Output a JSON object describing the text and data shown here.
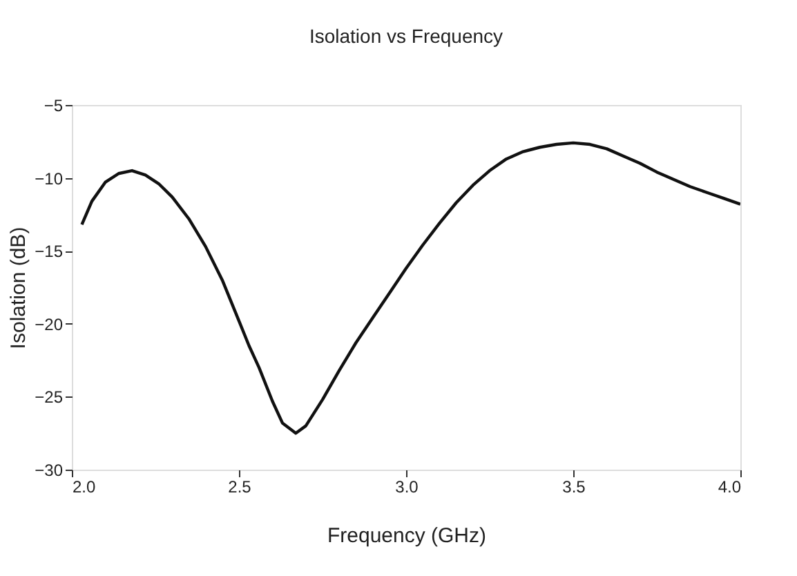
{
  "chart_data": {
    "type": "line",
    "title": "Isolation vs Frequency",
    "xlabel": "Frequency (GHz)",
    "ylabel": "Isolation (dB)",
    "x": [
      2.03,
      2.06,
      2.1,
      2.14,
      2.18,
      2.22,
      2.26,
      2.3,
      2.35,
      2.4,
      2.45,
      2.5,
      2.53,
      2.56,
      2.6,
      2.63,
      2.67,
      2.7,
      2.75,
      2.8,
      2.85,
      2.9,
      2.95,
      3.0,
      3.05,
      3.1,
      3.15,
      3.2,
      3.25,
      3.3,
      3.35,
      3.4,
      3.45,
      3.5,
      3.55,
      3.6,
      3.65,
      3.7,
      3.75,
      3.8,
      3.85,
      3.9,
      3.95,
      4.0
    ],
    "series": [
      {
        "color": "#111111",
        "values": [
          -13.2,
          -11.6,
          -10.3,
          -9.7,
          -9.5,
          -9.8,
          -10.4,
          -11.3,
          -12.8,
          -14.7,
          -17.0,
          -19.8,
          -21.5,
          -23.0,
          -25.3,
          -26.8,
          -27.5,
          -27.0,
          -25.2,
          -23.2,
          -21.3,
          -19.6,
          -17.9,
          -16.2,
          -14.6,
          -13.1,
          -11.7,
          -10.5,
          -9.5,
          -8.7,
          -8.2,
          -7.9,
          -7.7,
          -7.6,
          -7.7,
          -8.0,
          -8.5,
          -9.0,
          -9.6,
          -10.1,
          -10.6,
          -11.0,
          -11.4,
          -11.8
        ]
      }
    ],
    "xlim": [
      2.0,
      4.0
    ],
    "xticks": [
      {
        "value": 2.0,
        "label": "2.0"
      },
      2.5,
      {
        "value": 3.0,
        "label": "3.0"
      },
      3.5,
      {
        "value": 4.0,
        "label": "4.0"
      }
    ],
    "ylim": [
      -30,
      -5
    ],
    "yticks": [
      -30,
      -25,
      -20,
      -15,
      -10,
      -5
    ],
    "grid": false,
    "marker": "none",
    "line_style": "solid"
  }
}
